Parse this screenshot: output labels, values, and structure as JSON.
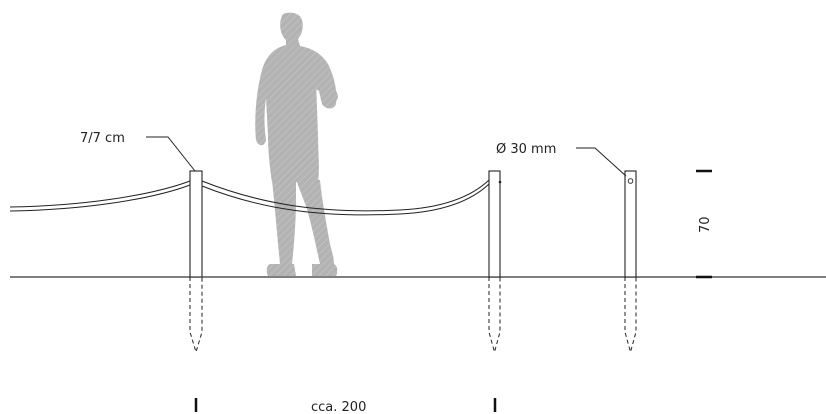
{
  "labels": {
    "post_section": "7/7 cm",
    "rope_diameter": "Ø 30 mm",
    "height": "70",
    "spacing": "cca. 200"
  },
  "colors": {
    "line": "#222222",
    "figure": "#b3b3b3"
  }
}
